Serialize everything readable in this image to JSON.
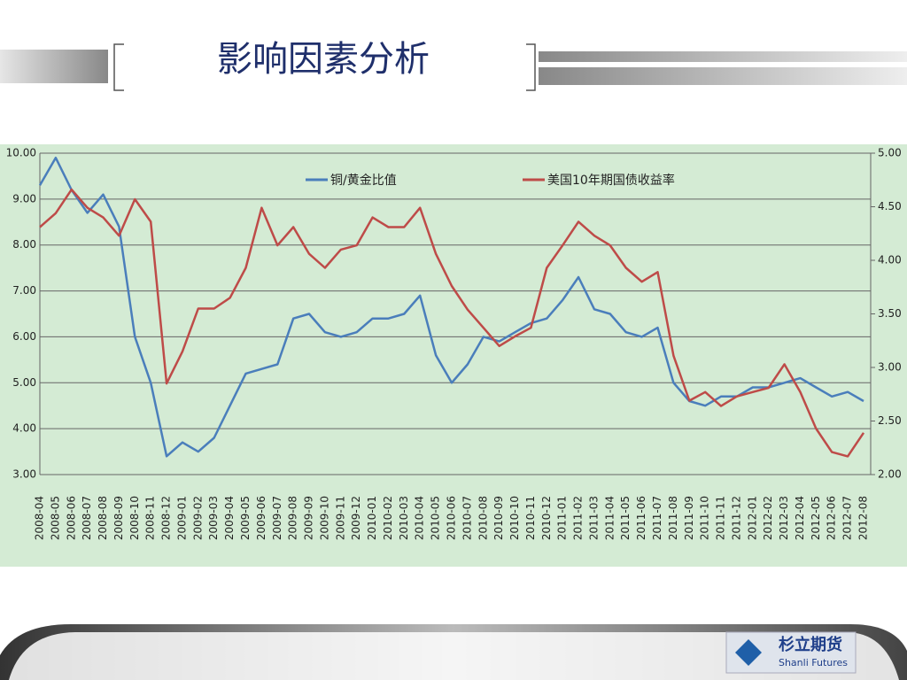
{
  "slide_title": "影响因素分析",
  "logo": {
    "name": "杉立期货",
    "subtitle": "Shanli Futures"
  },
  "chart_data": {
    "type": "line",
    "categories": [
      "2008-04",
      "2008-05",
      "2008-06",
      "2008-07",
      "2008-08",
      "2008-09",
      "2008-10",
      "2008-11",
      "2008-12",
      "2009-01",
      "2009-02",
      "2009-03",
      "2009-04",
      "2009-05",
      "2009-06",
      "2009-07",
      "2009-08",
      "2009-09",
      "2009-10",
      "2009-11",
      "2009-12",
      "2010-01",
      "2010-02",
      "2010-03",
      "2010-04",
      "2010-05",
      "2010-06",
      "2010-07",
      "2010-08",
      "2010-09",
      "2010-10",
      "2010-11",
      "2010-12",
      "2011-01",
      "2011-02",
      "2011-03",
      "2011-04",
      "2011-05",
      "2011-06",
      "2011-07",
      "2011-08",
      "2011-09",
      "2011-10",
      "2011-11",
      "2011-12",
      "2012-01",
      "2012-02",
      "2012-03",
      "2012-04",
      "2012-05",
      "2012-06",
      "2012-07",
      "2012-08"
    ],
    "series": [
      {
        "name": "铜/黄金比值",
        "color": "#4a7ebb",
        "values": [
          9.3,
          9.9,
          9.2,
          8.7,
          9.1,
          8.4,
          6.0,
          5.0,
          3.4,
          3.7,
          3.5,
          3.8,
          4.5,
          5.2,
          5.3,
          5.4,
          6.4,
          6.5,
          6.1,
          6.0,
          6.1,
          6.4,
          6.4,
          6.5,
          6.9,
          5.6,
          5.0,
          5.4,
          6.0,
          5.9,
          6.1,
          6.3,
          6.4,
          6.8,
          7.3,
          6.6,
          6.5,
          6.1,
          6.0,
          6.2,
          5.0,
          4.6,
          4.5,
          4.7,
          4.7,
          4.9,
          4.9,
          5.0,
          5.1,
          4.9,
          4.7,
          4.8,
          4.6
        ]
      },
      {
        "name": "美国10年期国债收益率",
        "color": "#be4b48",
        "axis": "y2",
        "values": [
          4.31,
          4.44,
          4.66,
          4.49,
          4.4,
          4.23,
          4.57,
          4.36,
          2.85,
          3.15,
          3.55,
          3.55,
          3.65,
          3.93,
          4.49,
          4.14,
          4.31,
          4.06,
          3.93,
          4.1,
          4.14,
          4.4,
          4.31,
          4.31,
          4.49,
          4.06,
          3.76,
          3.54,
          3.37,
          3.2,
          3.29,
          3.37,
          3.93,
          4.14,
          4.36,
          4.23,
          4.14,
          3.93,
          3.8,
          3.89,
          3.11,
          2.69,
          2.77,
          2.64,
          2.73,
          2.77,
          2.81,
          3.03,
          2.77,
          2.43,
          2.21,
          2.17,
          2.39
        ]
      }
    ],
    "ylim": [
      3,
      10
    ],
    "yticks": [
      {
        "value": 3,
        "label": "3.00"
      },
      {
        "value": 4,
        "label": "4.00"
      },
      {
        "value": 5,
        "label": "5.00"
      },
      {
        "value": 6,
        "label": "6.00"
      },
      {
        "value": 7,
        "label": "7.00"
      },
      {
        "value": 8,
        "label": "8.00"
      },
      {
        "value": 9,
        "label": "9.00"
      },
      {
        "value": 10,
        "label": "10.00"
      }
    ],
    "y2lim": [
      2,
      5
    ],
    "y2ticks": [
      {
        "value": 2,
        "label": "2.00"
      },
      {
        "value": 2.5,
        "label": "2.50"
      },
      {
        "value": 3,
        "label": "3.00"
      },
      {
        "value": 3.5,
        "label": "3.50"
      },
      {
        "value": 4,
        "label": "4.00"
      },
      {
        "value": 4.5,
        "label": "4.50"
      },
      {
        "value": 5,
        "label": "5.00"
      }
    ],
    "grid": true,
    "legend": "top"
  }
}
